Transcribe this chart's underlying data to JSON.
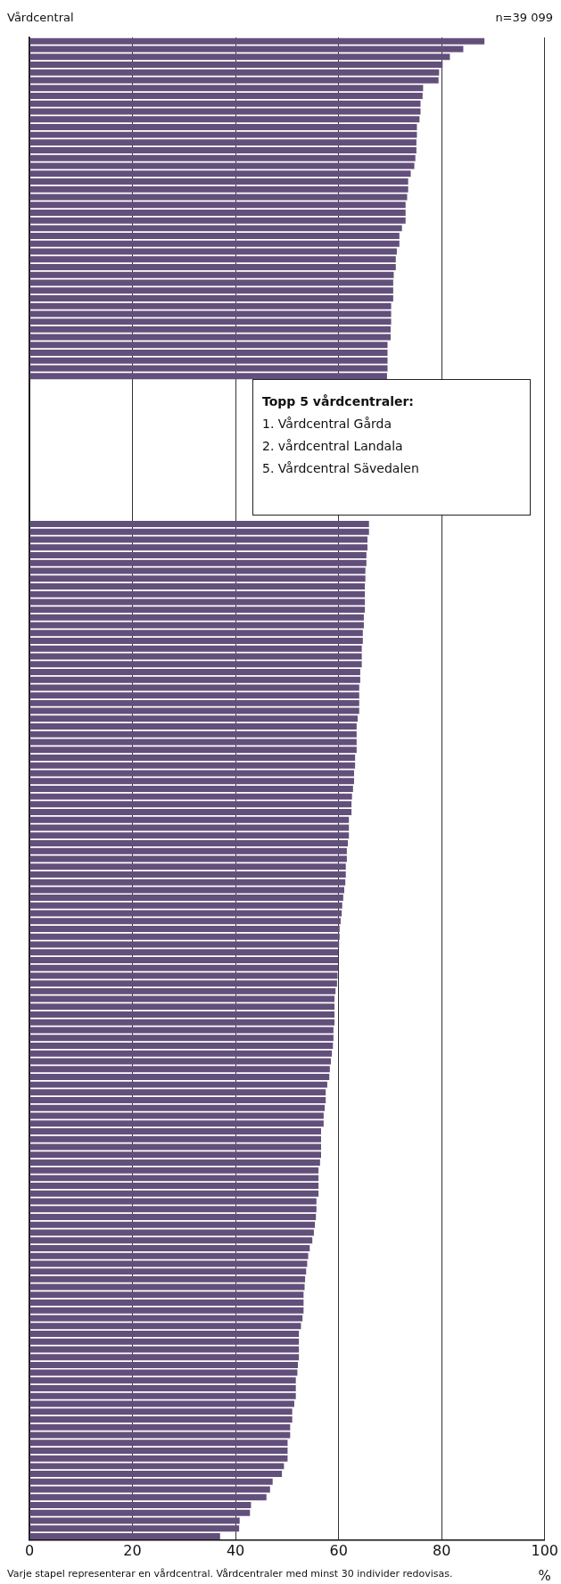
{
  "chart_data": {
    "type": "bar",
    "orientation": "horizontal",
    "ylabel": "Vårdcentral",
    "xlabel": "%",
    "annotations": [
      "n=39 099",
      "Varje stapel representerar en vårdcentral. Vårdcentraler med minst 30 individer redovisas.",
      "Topp 5 vårdcentraler:",
      "1. Vårdcentral Gårda",
      "2. vårdcentral Landala",
      "5. Vårdcentral Sävedalen"
    ],
    "categories": [
      null,
      null,
      null,
      null,
      null,
      null,
      null,
      null,
      null,
      null,
      null,
      null,
      null,
      null,
      null,
      null,
      null,
      null,
      null,
      null,
      null,
      null,
      null,
      null,
      null,
      null,
      null,
      null,
      null,
      null,
      null,
      null,
      null,
      null,
      null,
      null,
      null,
      null,
      null,
      null,
      null,
      null,
      null,
      null,
      null,
      null,
      null,
      null,
      null,
      null,
      null,
      null,
      null,
      null,
      null,
      null,
      null,
      null,
      null,
      null,
      null,
      null,
      null,
      null,
      null,
      null,
      null,
      null,
      null,
      null,
      null,
      null,
      null,
      null,
      null,
      null,
      null,
      null,
      null,
      null,
      null,
      null,
      null,
      null,
      null,
      null,
      null,
      null,
      null,
      null,
      null,
      null,
      null,
      null,
      null,
      null,
      null,
      null,
      null,
      null,
      null,
      null,
      null,
      null,
      null,
      null,
      null,
      null,
      null,
      null,
      null,
      null,
      null,
      null,
      null,
      null,
      null,
      null,
      null,
      null,
      null,
      null,
      null,
      null,
      null,
      null,
      null,
      null,
      null,
      null,
      null,
      null,
      null,
      null,
      null,
      null,
      null,
      null,
      null,
      null,
      null,
      null,
      null,
      null,
      null,
      null,
      null,
      null,
      null,
      null,
      null,
      null,
      null,
      null,
      null,
      null,
      null,
      null,
      null,
      null,
      null,
      null,
      null,
      null,
      null,
      null,
      null,
      null,
      null,
      null,
      null,
      null,
      null,
      null,
      null,
      null,
      null,
      null,
      null,
      null,
      null,
      null,
      null,
      null,
      null,
      null,
      null,
      null,
      null,
      null,
      null,
      null,
      null
    ],
    "values": [
      88.3,
      84.2,
      81.6,
      80.2,
      79.5,
      79.4,
      76.4,
      76.3,
      75.9,
      75.9,
      75.7,
      75.2,
      75.2,
      75.1,
      75.1,
      74.9,
      74.7,
      74.0,
      73.5,
      73.5,
      73.3,
      73.0,
      73.0,
      73.0,
      72.3,
      71.8,
      71.8,
      71.3,
      71.1,
      71.1,
      70.7,
      70.6,
      70.6,
      70.6,
      70.2,
      70.2,
      70.2,
      70.1,
      70.1,
      69.5,
      69.5,
      69.5,
      69.5,
      69.4,
      null,
      null,
      null,
      null,
      null,
      null,
      null,
      null,
      null,
      null,
      null,
      null,
      null,
      null,
      null,
      null,
      null,
      null,
      65.9,
      65.9,
      65.6,
      65.6,
      65.4,
      65.4,
      65.2,
      65.2,
      65.1,
      65.1,
      65.1,
      65.1,
      64.9,
      64.9,
      64.7,
      64.7,
      64.5,
      64.5,
      64.5,
      64.2,
      64.2,
      64.0,
      64.0,
      64.0,
      64.0,
      63.7,
      63.5,
      63.5,
      63.5,
      63.5,
      63.2,
      63.2,
      63.0,
      63.0,
      62.8,
      62.6,
      62.5,
      62.5,
      62.0,
      62.0,
      62.0,
      61.8,
      61.6,
      61.6,
      61.4,
      61.4,
      61.3,
      61.1,
      60.9,
      60.7,
      60.6,
      60.4,
      60.2,
      60.2,
      60.1,
      59.9,
      59.9,
      59.9,
      59.8,
      59.7,
      59.4,
      59.2,
      59.2,
      59.2,
      59.2,
      59.0,
      59.0,
      58.9,
      58.7,
      58.5,
      58.3,
      58.2,
      57.8,
      57.5,
      57.5,
      57.3,
      57.1,
      57.1,
      56.6,
      56.6,
      56.6,
      56.6,
      56.4,
      56.1,
      56.1,
      56.1,
      56.1,
      55.7,
      55.7,
      55.6,
      55.4,
      55.2,
      54.9,
      54.4,
      54.1,
      53.9,
      53.7,
      53.5,
      53.4,
      53.2,
      53.2,
      53.2,
      53.0,
      52.7,
      52.3,
      52.3,
      52.3,
      52.3,
      52.1,
      52.0,
      51.7,
      51.7,
      51.7,
      51.4,
      51.0,
      51.0,
      50.6,
      50.6,
      50.1,
      50.1,
      50.1,
      49.4,
      49.0,
      47.2,
      46.7,
      46.0,
      43.0,
      42.8,
      40.8,
      40.7,
      37.0
    ],
    "color": "#634f7b",
    "xlim": [
      0,
      100
    ],
    "xticks": [
      0,
      20,
      40,
      60,
      80,
      100
    ],
    "grid": "x",
    "legend": false
  }
}
